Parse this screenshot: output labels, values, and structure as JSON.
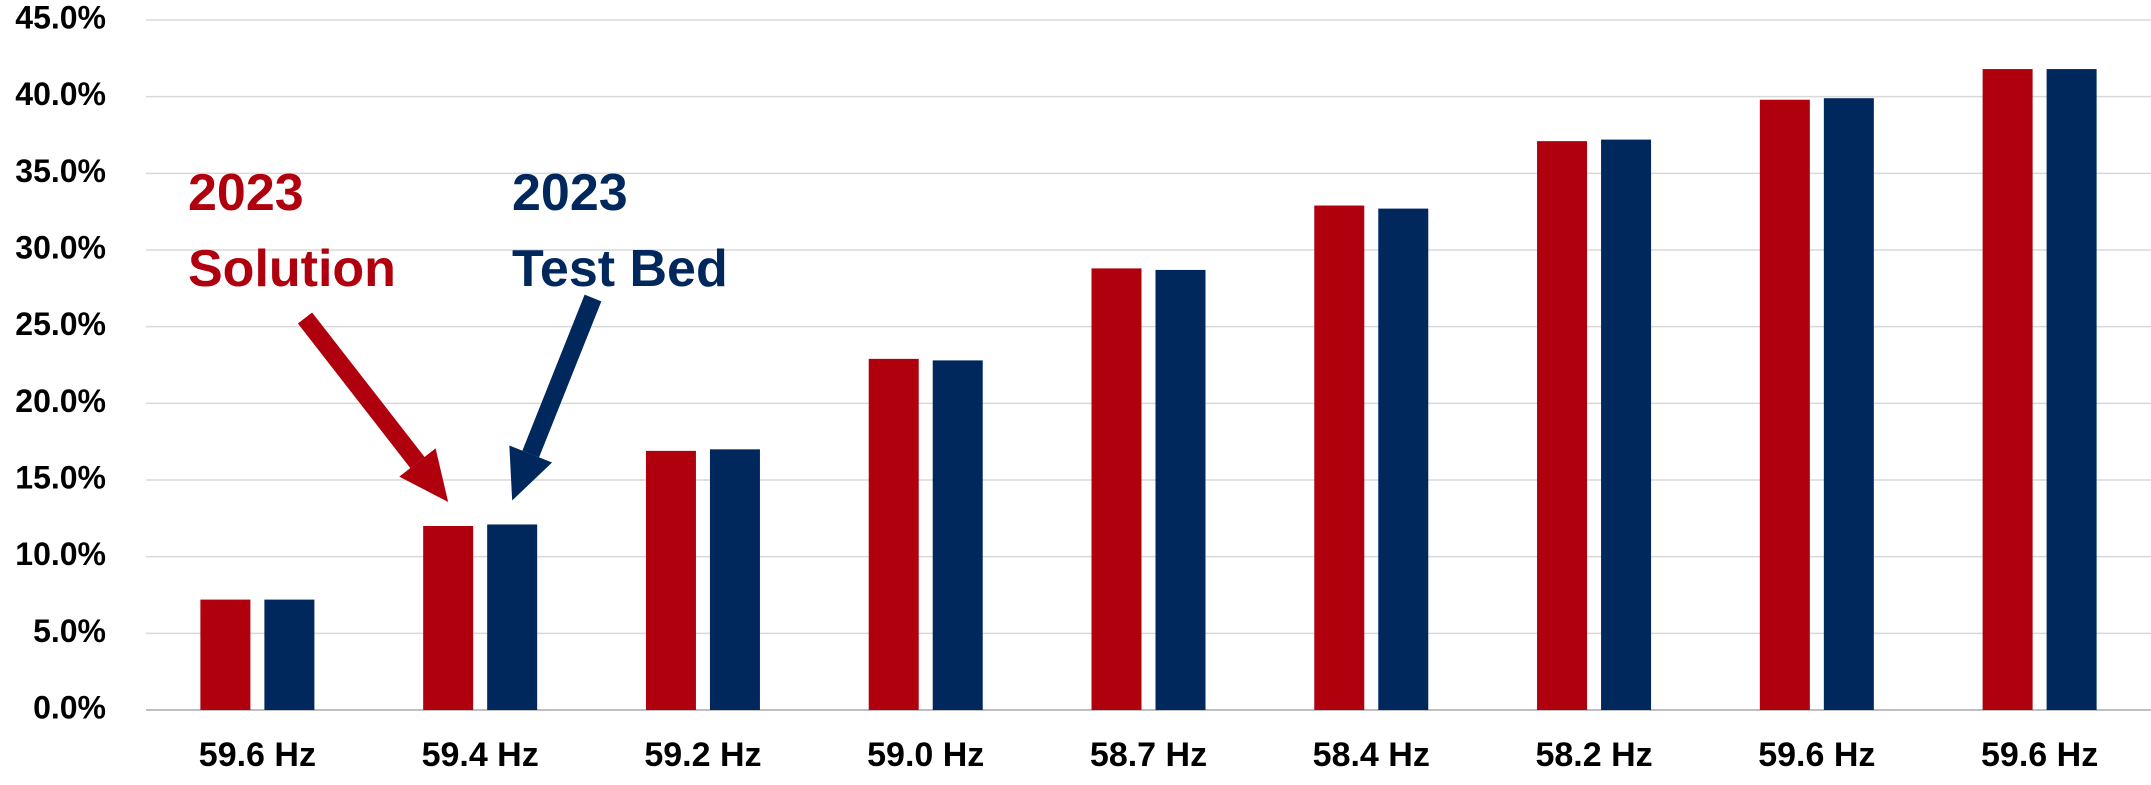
{
  "chart_data": {
    "type": "bar",
    "categories": [
      "59.6 Hz",
      "59.4 Hz",
      "59.2 Hz",
      "59.0 Hz",
      "58.7 Hz",
      "58.4 Hz",
      "58.2 Hz",
      "59.6 Hz",
      "59.6 Hz"
    ],
    "series": [
      {
        "values": [
          7.2,
          12.0,
          16.9,
          22.9,
          28.8,
          32.9,
          37.1,
          39.8,
          41.8
        ],
        "color": "#B0000E"
      },
      {
        "values": [
          7.2,
          12.1,
          17.0,
          22.8,
          28.7,
          32.7,
          37.2,
          39.9,
          41.8
        ],
        "color": "#00285C"
      }
    ],
    "ylim": [
      0,
      45
    ],
    "y_ticks": [
      "0.0%",
      "5.0%",
      "10.0%",
      "15.0%",
      "20.0%",
      "25.0%",
      "30.0%",
      "35.0%",
      "40.0%",
      "45.0%"
    ],
    "y_tick_values": [
      0,
      5,
      10,
      15,
      20,
      25,
      30,
      35,
      40,
      45
    ],
    "grid": true,
    "annotations": [
      {
        "line1": "2023",
        "line2": "Solution",
        "color": "#B0000E",
        "arrow_target_category": 1,
        "arrow_target_series": 0
      },
      {
        "line1": "2023",
        "line2": "Test Bed",
        "color": "#00285C",
        "arrow_target_category": 1,
        "arrow_target_series": 1
      }
    ]
  }
}
